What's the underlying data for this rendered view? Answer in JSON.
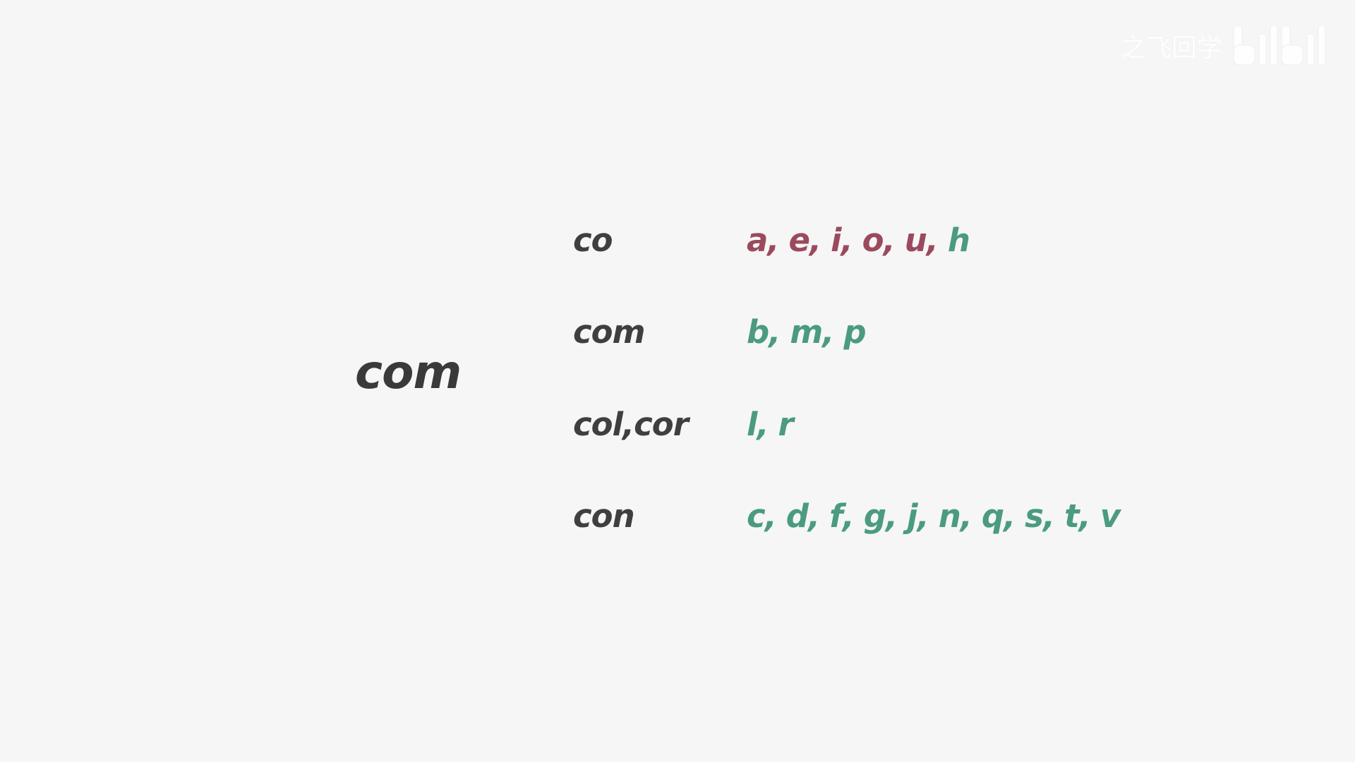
{
  "prefix": "com",
  "rows": [
    {
      "variant": "co",
      "letters": [
        {
          "text": "a",
          "kind": "vowel"
        },
        {
          "text": "e",
          "kind": "vowel"
        },
        {
          "text": "i",
          "kind": "vowel"
        },
        {
          "text": "o",
          "kind": "vowel"
        },
        {
          "text": "u",
          "kind": "vowel"
        },
        {
          "text": "h",
          "kind": "consonant"
        }
      ]
    },
    {
      "variant": "com",
      "letters": [
        {
          "text": "b",
          "kind": "consonant"
        },
        {
          "text": "m",
          "kind": "consonant"
        },
        {
          "text": "p",
          "kind": "consonant"
        }
      ]
    },
    {
      "variant": "col,cor",
      "letters": [
        {
          "text": "l",
          "kind": "consonant"
        },
        {
          "text": "r",
          "kind": "consonant"
        }
      ]
    },
    {
      "variant": "con",
      "letters": [
        {
          "text": "c",
          "kind": "consonant"
        },
        {
          "text": "d",
          "kind": "consonant"
        },
        {
          "text": "f",
          "kind": "consonant"
        },
        {
          "text": "g",
          "kind": "consonant"
        },
        {
          "text": "j",
          "kind": "consonant"
        },
        {
          "text": "n",
          "kind": "consonant"
        },
        {
          "text": "q",
          "kind": "consonant"
        },
        {
          "text": "s",
          "kind": "consonant"
        },
        {
          "text": "t",
          "kind": "consonant"
        },
        {
          "text": "v",
          "kind": "consonant"
        }
      ]
    }
  ],
  "colors": {
    "background": "#f6f6f6",
    "text_dark": "#3f3f3f",
    "vowel": "#9b4a5e",
    "consonant": "#4a9b80"
  },
  "watermark": {
    "text": "之飞回学",
    "logo": "bilibili-logo"
  }
}
